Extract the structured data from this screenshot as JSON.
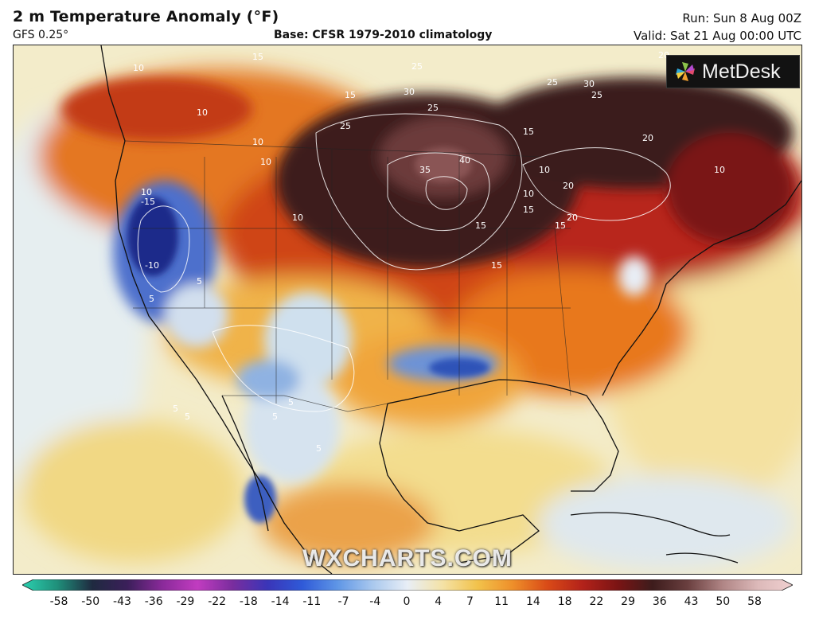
{
  "header": {
    "title": "2 m Temperature Anomaly (°F)",
    "model": "GFS 0.25°",
    "base": "Base: CFSR 1979-2010 climatology",
    "run": "Run: Sun 8 Aug 00Z",
    "valid": "Valid: Sat 21 Aug 00:00 UTC"
  },
  "brand": {
    "name": "MetDesk",
    "icon": "metdesk-pinwheel-icon"
  },
  "watermark": "WXCHARTS.COM",
  "map": {
    "contour_labels": [
      "10",
      "10",
      "10",
      "10",
      "10",
      "10",
      "15",
      "15",
      "15",
      "25",
      "30",
      "25",
      "25",
      "30",
      "25",
      "20",
      "25",
      "35",
      "40",
      "20",
      "10",
      "15",
      "20",
      "10",
      "20",
      "15",
      "10",
      "15",
      "15",
      "-15",
      "-10",
      "5",
      "5",
      "5",
      "5",
      "5",
      "5",
      "5"
    ],
    "colors": {
      "ocean_light": "#f2ebc8",
      "cold_blue": "#2f4fb8",
      "deep_cold": "#1e2c8a",
      "warm_orange": "#e8751c",
      "hot_red": "#b8261b",
      "very_hot": "#3d1f1f"
    }
  },
  "colorbar": {
    "ticks": [
      "-58",
      "-50",
      "-43",
      "-36",
      "-29",
      "-22",
      "-18",
      "-14",
      "-11",
      "-7",
      "-4",
      "0",
      "4",
      "7",
      "11",
      "14",
      "18",
      "22",
      "29",
      "36",
      "43",
      "50",
      "58"
    ],
    "stops": [
      "#2bd1b0",
      "#1f8f7a",
      "#1f2a40",
      "#3b1f5a",
      "#8a2a9a",
      "#c13cc0",
      "#7a2d9e",
      "#3a35b8",
      "#2f5ad8",
      "#5f96e6",
      "#a9c8ee",
      "#e8eef6",
      "#f4e2a6",
      "#f2c24b",
      "#ee8f2a",
      "#d94a17",
      "#b3221a",
      "#7b1414",
      "#3d1c1c",
      "#6a3f3f",
      "#b08585",
      "#dcb9b9",
      "#f0d0d0"
    ]
  }
}
